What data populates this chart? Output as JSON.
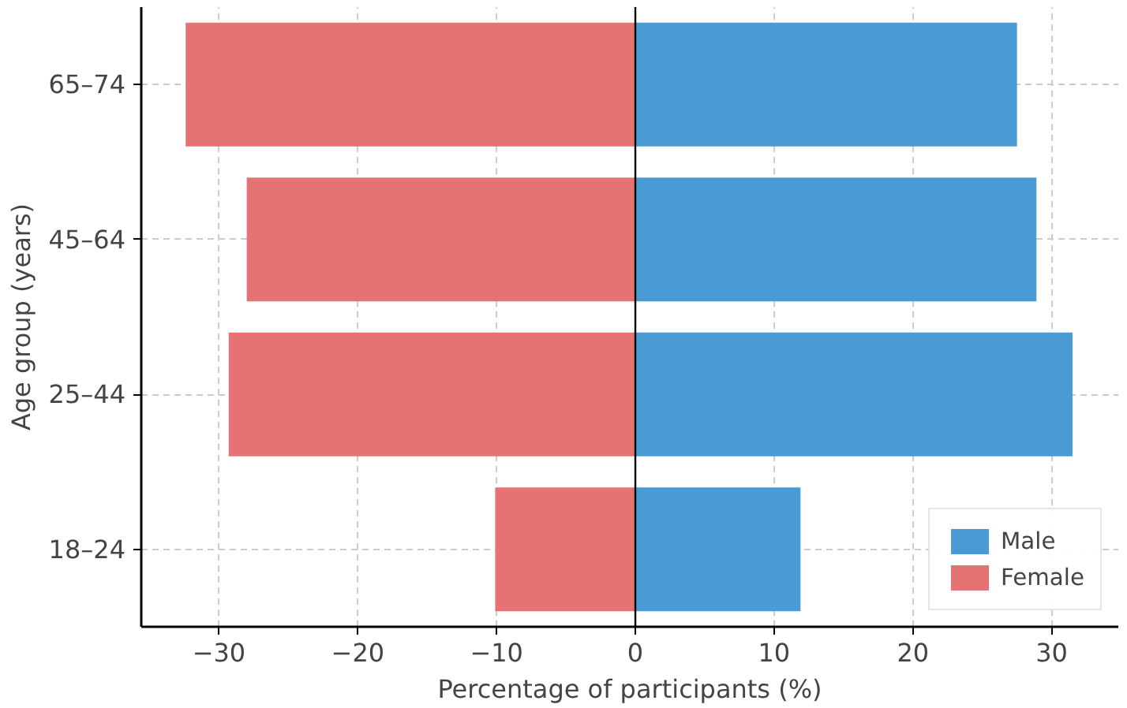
{
  "chart_data": {
    "type": "bar",
    "orientation": "horizontal",
    "xlabel": "Percentage of participants (%)",
    "ylabel": "Age group (years)",
    "categories": [
      "65–74",
      "45–64",
      "25–44",
      "18–24"
    ],
    "series": [
      {
        "name": "Male",
        "color": "#4a9bd4",
        "values": [
          27.5,
          28.9,
          31.5,
          11.9
        ]
      },
      {
        "name": "Female",
        "color": "#e57373",
        "values": [
          -32.4,
          -28.0,
          -29.3,
          -10.1
        ]
      }
    ],
    "xlim": [
      -35.6,
      34.8
    ],
    "xticks": [
      {
        "value": -30,
        "label": "−30"
      },
      {
        "value": -20,
        "label": "−20"
      },
      {
        "value": -10,
        "label": "−10"
      },
      0,
      10,
      20,
      30
    ],
    "ref_lines": [
      {
        "axis": "x",
        "value": 0,
        "color": "#000000"
      }
    ],
    "stacked": true,
    "grid": true,
    "legend": "bottom right"
  }
}
